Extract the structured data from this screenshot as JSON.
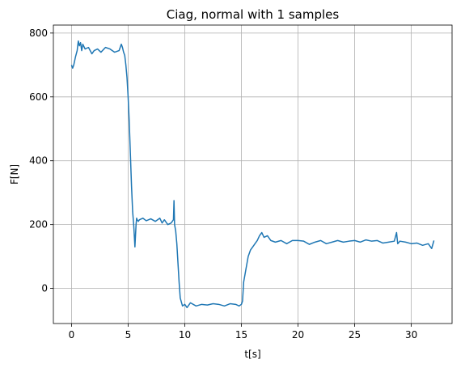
{
  "chart_data": {
    "type": "line",
    "title": "Ciag, normal with 1 samples",
    "xlabel": "t[s]",
    "ylabel": "F[N]",
    "xlim": [
      -1.6,
      33.6
    ],
    "ylim": [
      -110,
      825
    ],
    "xticks": [
      0,
      5,
      10,
      15,
      20,
      25,
      30
    ],
    "yticks": [
      0,
      200,
      400,
      600,
      800
    ],
    "grid": true,
    "series": [
      {
        "color": "#1f77b4",
        "x": [
          0,
          0.1,
          0.2,
          0.35,
          0.5,
          0.6,
          0.7,
          0.8,
          0.9,
          1.0,
          1.2,
          1.5,
          1.8,
          2.0,
          2.3,
          2.6,
          3.0,
          3.4,
          3.8,
          4.2,
          4.4,
          4.5,
          4.6,
          4.7,
          4.8,
          4.9,
          5.0,
          5.1,
          5.2,
          5.3,
          5.4,
          5.5,
          5.6,
          5.7,
          5.75,
          5.8,
          5.9,
          6.0,
          6.3,
          6.6,
          7.0,
          7.4,
          7.8,
          8.0,
          8.2,
          8.5,
          8.8,
          9.0,
          9.05,
          9.1,
          9.2,
          9.3,
          9.4,
          9.5,
          9.6,
          9.8,
          10.0,
          10.2,
          10.5,
          11.0,
          11.5,
          12.0,
          12.5,
          13.0,
          13.5,
          14.0,
          14.5,
          14.8,
          15.0,
          15.1,
          15.2,
          15.4,
          15.6,
          15.8,
          16.0,
          16.2,
          16.4,
          16.6,
          16.8,
          17.0,
          17.3,
          17.6,
          18.0,
          18.5,
          19.0,
          19.5,
          20.0,
          20.5,
          21.0,
          21.5,
          22.0,
          22.5,
          23.0,
          23.5,
          24.0,
          24.5,
          25.0,
          25.5,
          26.0,
          26.5,
          27.0,
          27.5,
          28.0,
          28.5,
          28.7,
          28.8,
          29.0,
          29.5,
          30.0,
          30.5,
          31.0,
          31.5,
          31.8,
          32.0
        ],
        "y": [
          700,
          690,
          700,
          725,
          745,
          775,
          760,
          770,
          745,
          765,
          750,
          755,
          735,
          745,
          750,
          740,
          755,
          750,
          740,
          745,
          765,
          755,
          740,
          730,
          700,
          660,
          600,
          520,
          420,
          320,
          240,
          195,
          130,
          200,
          220,
          215,
          210,
          215,
          220,
          212,
          218,
          210,
          220,
          205,
          215,
          200,
          205,
          215,
          275,
          200,
          180,
          140,
          80,
          20,
          -30,
          -55,
          -50,
          -60,
          -45,
          -55,
          -50,
          -52,
          -48,
          -50,
          -55,
          -48,
          -50,
          -55,
          -50,
          -40,
          20,
          60,
          100,
          120,
          130,
          140,
          150,
          165,
          175,
          160,
          165,
          150,
          145,
          150,
          140,
          150,
          150,
          148,
          138,
          145,
          150,
          140,
          145,
          150,
          145,
          148,
          150,
          145,
          152,
          148,
          150,
          142,
          145,
          148,
          175,
          140,
          148,
          145,
          140,
          142,
          135,
          140,
          125,
          150
        ]
      }
    ]
  }
}
